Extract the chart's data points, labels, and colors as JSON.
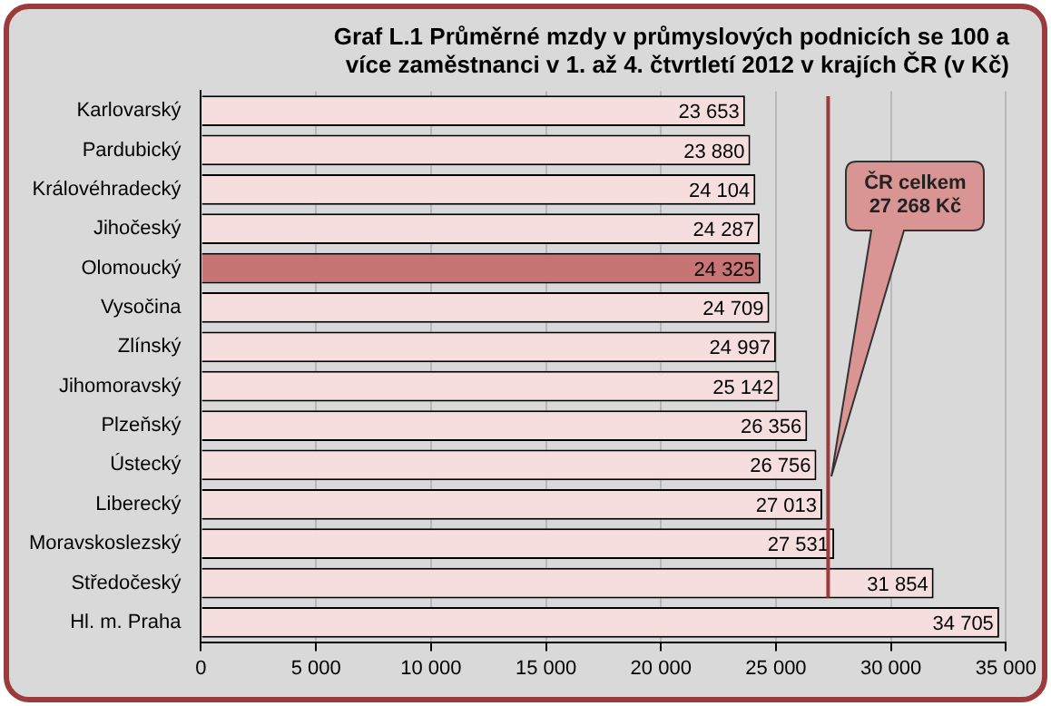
{
  "chart_data": {
    "type": "bar",
    "orientation": "horizontal",
    "title": "Graf L.1 Průměrné mzdy v průmyslových podnicích se 100 a více zaměstnanci v 1. až 4. čtvrtletí 2012 v krajích ČR (v Kč)",
    "categories": [
      "Karlovarský",
      "Pardubický",
      "Královéhradecký",
      "Jihočeský",
      "Olomoucký",
      "Vysočina",
      "Zlínský",
      "Jihomoravský",
      "Plzeňský",
      "Ústecký",
      "Liberecký",
      "Moravskoslezský",
      "Středočeský",
      "Hl. m. Praha"
    ],
    "values": [
      23653,
      23880,
      24104,
      24287,
      24325,
      24709,
      24997,
      25142,
      26356,
      26756,
      27013,
      27531,
      31854,
      34705
    ],
    "colors": [
      "#f6dede",
      "#f6dede",
      "#f6dede",
      "#f6dede",
      "#c97474",
      "#f6dede",
      "#f6dede",
      "#f6dede",
      "#f6dede",
      "#f6dede",
      "#f6dede",
      "#f6dede",
      "#f6dede",
      "#f6dede"
    ],
    "value_labels": [
      "23 653",
      "23 880",
      "24 104",
      "24 287",
      "24 325",
      "24 709",
      "24 997",
      "25 142",
      "26 356",
      "26 756",
      "27 013",
      "27 531",
      "31 854",
      "34 705"
    ],
    "xlim": [
      0,
      35000
    ],
    "xticks": [
      0,
      {
        "value": 5000,
        "label": "5 000"
      },
      {
        "value": 10000,
        "label": "10 000"
      },
      {
        "value": 15000,
        "label": "15 000"
      },
      {
        "value": 20000,
        "label": "20 000"
      },
      {
        "value": 25000,
        "label": "25 000"
      },
      {
        "value": 30000,
        "label": "30 000"
      },
      {
        "value": 35000,
        "label": "35 000"
      }
    ],
    "grid": "x",
    "legend": false,
    "ref_lines": [
      {
        "axis": "x",
        "value": 27268,
        "label": "ČR celkem 27 268 Kč",
        "color": "#9b3b3b"
      }
    ]
  }
}
